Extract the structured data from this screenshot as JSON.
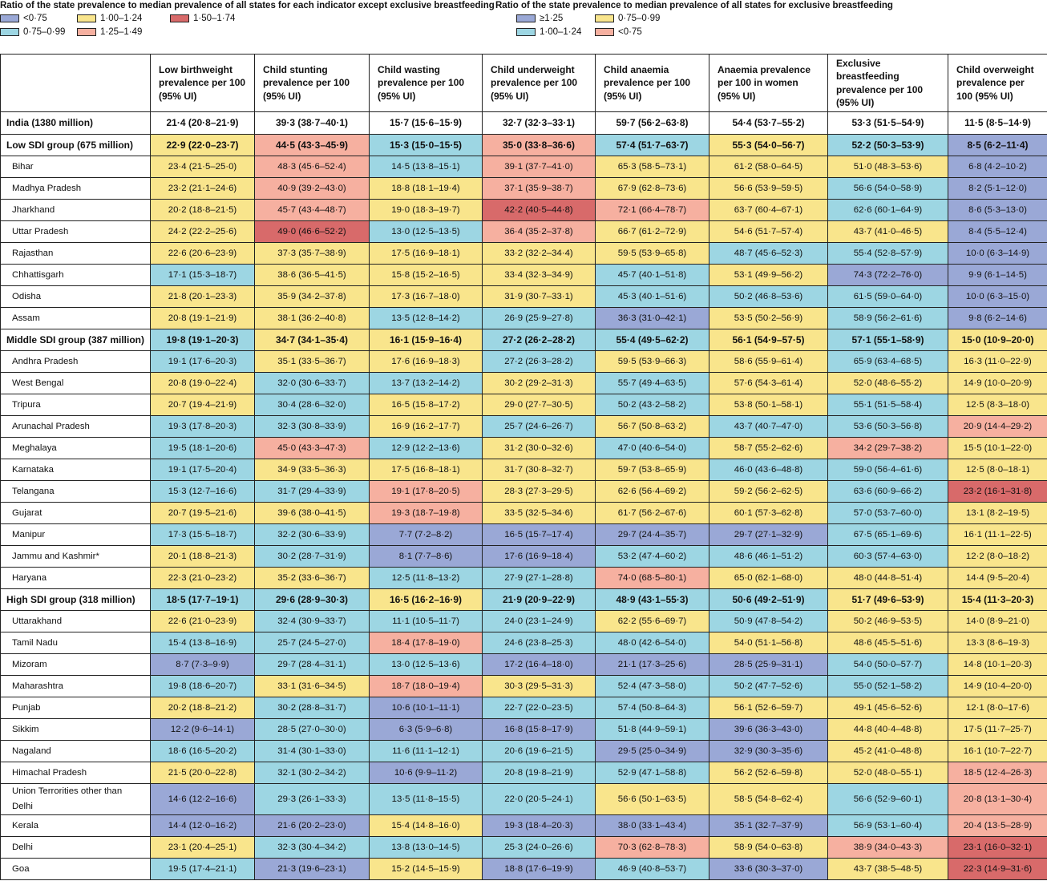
{
  "legend": {
    "left": {
      "title": "Ratio of the state prevalence to median prevalence of all states for each indicator except exclusive breastfeeding",
      "items": [
        {
          "label": "<0·75",
          "color": "#9aa8d6"
        },
        {
          "label": "1·00–1·24",
          "color": "#f9e58c"
        },
        {
          "label": "1·50–1·74",
          "color": "#d86a6a"
        },
        {
          "label": "0·75–0·99",
          "color": "#9dd6e3"
        },
        {
          "label": "1·25–1·49",
          "color": "#f6b0a0"
        }
      ]
    },
    "right": {
      "title": "Ratio of the state prevalence to median prevalence of all states for exclusive breastfeeding",
      "items": [
        {
          "label": "≥1·25",
          "color": "#9aa8d6"
        },
        {
          "label": "0·75–0·99",
          "color": "#f9e58c"
        },
        {
          "label": "1·00–1·24",
          "color": "#9dd6e3"
        },
        {
          "label": "<0·75",
          "color": "#f6b0a0"
        }
      ]
    }
  },
  "colors": {
    "B": "#9aa8d6",
    "C": "#9dd6e3",
    "Y": "#f9e58c",
    "P": "#f6b0a0",
    "R": "#d86a6a",
    "W": "#ffffff"
  },
  "headers": [
    "",
    "Low birthweight prevalence per 100 (95% UI)",
    "Child  stunting prevalence per 100 (95% UI)",
    "Child wasting prevalence per 100 (95% UI)",
    "Child underweight prevalence per 100 (95% UI)",
    "Child anaemia prevalence per 100 (95% UI)",
    "Anaemia  prevalence per 100 in women (95% UI)",
    "Exclusive breastfeeding prevalence per 100 (95% UI)",
    "Child overweight prevalence per 100 (95% UI)"
  ],
  "rows": [
    {
      "label": "India (1380 million)",
      "type": "nat",
      "cells": [
        "21·4 (20·8–21·9)",
        "39·3 (38·7–40·1)",
        "15·7 (15·6–15·9)",
        "32·7 (32·3–33·1)",
        "59·7 (56·2–63·8)",
        "54·4 (53·7–55·2)",
        "53·3 (51·5–54·9)",
        "11·5 (8·5–14·9)"
      ],
      "colors": [
        "W",
        "W",
        "W",
        "W",
        "W",
        "W",
        "W",
        "W"
      ]
    },
    {
      "label": "Low SDI group (675 million)",
      "type": "grp",
      "cells": [
        "22·9 (22·0–23·7)",
        "44·5 (43·3–45·9)",
        "15·3 (15·0–15·5)",
        "35·0 (33·8–36·6)",
        "57·4 (51·7–63·7)",
        "55·3 (54·0–56·7)",
        "52·2 (50·3–53·9)",
        "8·5 (6·2–11·4)"
      ],
      "colors": [
        "Y",
        "P",
        "C",
        "P",
        "C",
        "Y",
        "C",
        "B"
      ]
    },
    {
      "label": "Bihar",
      "type": "row",
      "cells": [
        "23·4 (21·5–25·0)",
        "48·3 (45·6–52·4)",
        "14·5 (13·8–15·1)",
        "39·1 (37·7–41·0)",
        "65·3 (58·5–73·1)",
        "61·2 (58·0–64·5)",
        "51·0 (48·3–53·6)",
        "6·8 (4·2–10·2)"
      ],
      "colors": [
        "Y",
        "P",
        "C",
        "P",
        "Y",
        "Y",
        "Y",
        "B"
      ]
    },
    {
      "label": "Madhya Pradesh",
      "type": "row",
      "cells": [
        "23·2 (21·1–24·6)",
        "40·9 (39·2–43·0)",
        "18·8 (18·1–19·4)",
        "37·1 (35·9–38·7)",
        "67·9 (62·8–73·6)",
        "56·6 (53·9–59·5)",
        "56·6 (54·0–58·9)",
        "8·2 (5·1–12·0)"
      ],
      "colors": [
        "Y",
        "P",
        "Y",
        "P",
        "Y",
        "Y",
        "C",
        "B"
      ]
    },
    {
      "label": "Jharkhand",
      "type": "row",
      "cells": [
        "20·2 (18·8–21·5)",
        "45·7 (43·4–48·7)",
        "19·0 (18·3–19·7)",
        "42·2 (40·5–44·8)",
        "72·1 (66·4–78·7)",
        "63·7 (60·4–67·1)",
        "62·6 (60·1–64·9)",
        "8·6 (5·3–13·0)"
      ],
      "colors": [
        "Y",
        "P",
        "Y",
        "R",
        "P",
        "Y",
        "C",
        "B"
      ]
    },
    {
      "label": "Uttar Pradesh",
      "type": "row",
      "cells": [
        "24·2 (22·2–25·6)",
        "49·0 (46·6–52·2)",
        "13·0 (12·5–13·5)",
        "36·4 (35·2–37·8)",
        "66·7 (61·2–72·9)",
        "54·6 (51·7–57·4)",
        "43·7 (41·0–46·5)",
        "8·4 (5·5–12·4)"
      ],
      "colors": [
        "Y",
        "R",
        "C",
        "P",
        "Y",
        "Y",
        "Y",
        "B"
      ]
    },
    {
      "label": "Rajasthan",
      "type": "row",
      "cells": [
        "22·6 (20·6–23·9)",
        "37·3 (35·7–38·9)",
        "17·5 (16·9–18·1)",
        "33·2 (32·2–34·4)",
        "59·5 (53·9–65·8)",
        "48·7 (45·6–52·3)",
        "55·4 (52·8–57·9)",
        "10·0 (6·3–14·9)"
      ],
      "colors": [
        "Y",
        "Y",
        "Y",
        "Y",
        "Y",
        "C",
        "C",
        "B"
      ]
    },
    {
      "label": "Chhattisgarh",
      "type": "row",
      "cells": [
        "17·1 (15·3–18·7)",
        "38·6 (36·5–41·5)",
        "15·8 (15·2–16·5)",
        "33·4 (32·3–34·9)",
        "45·7 (40·1–51·8)",
        "53·1 (49·9–56·2)",
        "74·3 (72·2–76·0)",
        "9·9 (6·1–14·5)"
      ],
      "colors": [
        "C",
        "Y",
        "Y",
        "Y",
        "C",
        "Y",
        "B",
        "B"
      ]
    },
    {
      "label": "Odisha",
      "type": "row",
      "cells": [
        "21·8 (20·1–23·3)",
        "35·9 (34·2–37·8)",
        "17·3 (16·7–18·0)",
        "31·9 (30·7–33·1)",
        "45·3 (40·1–51·6)",
        "50·2 (46·8–53·6)",
        "61·5 (59·0–64·0)",
        "10·0 (6·3–15·0)"
      ],
      "colors": [
        "Y",
        "Y",
        "Y",
        "Y",
        "C",
        "C",
        "C",
        "B"
      ]
    },
    {
      "label": "Assam",
      "type": "row",
      "cells": [
        "20·8 (19·1–21·9)",
        "38·1 (36·2–40·8)",
        "13·5 (12·8–14·2)",
        "26·9 (25·9–27·8)",
        "36·3 (31·0–42·1)",
        "53·5 (50·2–56·9)",
        "58·9 (56·2–61·6)",
        "9·8 (6·2–14·6)"
      ],
      "colors": [
        "Y",
        "Y",
        "C",
        "C",
        "B",
        "Y",
        "C",
        "B"
      ]
    },
    {
      "label": "Middle SDI group (387 million)",
      "type": "grp",
      "cells": [
        "19·8 (19·1–20·3)",
        "34·7 (34·1–35·4)",
        "16·1 (15·9–16·4)",
        "27·2 (26·2–28·2)",
        "55·4 (49·5–62·2)",
        "56·1 (54·9–57·5)",
        "57·1 (55·1–58·9)",
        "15·0 (10·9–20·0)"
      ],
      "colors": [
        "C",
        "Y",
        "Y",
        "C",
        "C",
        "Y",
        "C",
        "Y"
      ]
    },
    {
      "label": "Andhra Pradesh",
      "type": "row",
      "cells": [
        "19·1 (17·6–20·3)",
        "35·1 (33·5–36·7)",
        "17·6 (16·9–18·3)",
        "27·2 (26·3–28·2)",
        "59·5 (53·9–66·3)",
        "58·6 (55·9–61·4)",
        "65·9 (63·4–68·5)",
        "16·3 (11·0–22·9)"
      ],
      "colors": [
        "C",
        "Y",
        "Y",
        "C",
        "Y",
        "Y",
        "C",
        "Y"
      ]
    },
    {
      "label": "West Bengal",
      "type": "row",
      "cells": [
        "20·8 (19·0–22·4)",
        "32·0 (30·6–33·7)",
        "13·7 (13·2–14·2)",
        "30·2 (29·2–31·3)",
        "55·7 (49·4–63·5)",
        "57·6 (54·3–61·4)",
        "52·0 (48·6–55·2)",
        "14·9 (10·0–20·9)"
      ],
      "colors": [
        "Y",
        "C",
        "C",
        "Y",
        "C",
        "Y",
        "Y",
        "Y"
      ]
    },
    {
      "label": "Tripura",
      "type": "row",
      "cells": [
        "20·7 (19·4–21·9)",
        "30·4 (28·6–32·0)",
        "16·5 (15·8–17·2)",
        "29·0 (27·7–30·5)",
        "50·2 (43·2–58·2)",
        "53·8 (50·1–58·1)",
        "55·1 (51·5–58·4)",
        "12·5 (8·3–18·0)"
      ],
      "colors": [
        "Y",
        "C",
        "Y",
        "Y",
        "C",
        "Y",
        "C",
        "Y"
      ]
    },
    {
      "label": "Arunachal Pradesh",
      "type": "row",
      "cells": [
        "19·3 (17·8–20·3)",
        "32·3 (30·8–33·9)",
        "16·9 (16·2–17·7)",
        "25·7 (24·6–26·7)",
        "56·7 (50·8–63·2)",
        "43·7 (40·7–47·0)",
        "53·6 (50·3–56·8)",
        "20·9 (14·4–29·2)"
      ],
      "colors": [
        "C",
        "C",
        "Y",
        "C",
        "Y",
        "C",
        "C",
        "P"
      ]
    },
    {
      "label": "Meghalaya",
      "type": "row",
      "cells": [
        "19·5 (18·1–20·6)",
        "45·0 (43·3–47·3)",
        "12·9 (12·2–13·6)",
        "31·2 (30·0–32·6)",
        "47·0 (40·6–54·0)",
        "58·7 (55·2–62·6)",
        "34·2 (29·7–38·2)",
        "15·5 (10·1–22·0)"
      ],
      "colors": [
        "C",
        "P",
        "C",
        "Y",
        "C",
        "Y",
        "P",
        "Y"
      ]
    },
    {
      "label": "Karnataka",
      "type": "row",
      "cells": [
        "19·1 (17·5–20·4)",
        "34·9 (33·5–36·3)",
        "17·5 (16·8–18·1)",
        "31·7 (30·8–32·7)",
        "59·7 (53·8–65·9)",
        "46·0 (43·6–48·8)",
        "59·0 (56·4–61·6)",
        "12·5 (8·0–18·1)"
      ],
      "colors": [
        "C",
        "Y",
        "Y",
        "Y",
        "Y",
        "C",
        "C",
        "Y"
      ]
    },
    {
      "label": "Telangana",
      "type": "row",
      "cells": [
        "15·3 (12·7–16·6)",
        "31·7 (29·4–33·9)",
        "19·1 (17·8–20·5)",
        "28·3 (27·3–29·5)",
        "62·6 (56·4–69·2)",
        "59·2 (56·2–62·5)",
        "63·6 (60·9–66·2)",
        "23·2 (16·1–31·8)"
      ],
      "colors": [
        "C",
        "C",
        "P",
        "Y",
        "Y",
        "Y",
        "C",
        "R"
      ]
    },
    {
      "label": "Gujarat",
      "type": "row",
      "cells": [
        "20·7 (19·5–21·6)",
        "39·6 (38·0–41·5)",
        "19·3 (18·7–19·8)",
        "33·5 (32·5–34·6)",
        "61·7 (56·2–67·6)",
        "60·1 (57·3–62·8)",
        "57·0 (53·7–60·0)",
        "13·1 (8·2–19·5)"
      ],
      "colors": [
        "Y",
        "Y",
        "P",
        "Y",
        "Y",
        "Y",
        "C",
        "Y"
      ]
    },
    {
      "label": "Manipur",
      "type": "row",
      "cells": [
        "17·3 (15·5–18·7)",
        "32·2 (30·6–33·9)",
        "7·7 (7·2–8·2)",
        "16·5 (15·7–17·4)",
        "29·7 (24·4–35·7)",
        "29·7 (27·1–32·9)",
        "67·5 (65·1–69·6)",
        "16·1 (11·1–22·5)"
      ],
      "colors": [
        "C",
        "C",
        "B",
        "B",
        "B",
        "B",
        "C",
        "Y"
      ]
    },
    {
      "label": "Jammu and Kashmir*",
      "type": "row",
      "cells": [
        "20·1 (18·8–21·3)",
        "30·2 (28·7–31·9)",
        "8·1 (7·7–8·6)",
        "17·6 (16·9–18·4)",
        "53·2 (47·4–60·2)",
        "48·6 (46·1–51·2)",
        "60·3 (57·4–63·0)",
        "12·2 (8·0–18·2)"
      ],
      "colors": [
        "Y",
        "C",
        "B",
        "B",
        "C",
        "C",
        "C",
        "Y"
      ]
    },
    {
      "label": "Haryana",
      "type": "row",
      "cells": [
        "22·3 (21·0–23·2)",
        "35·2 (33·6–36·7)",
        "12·5 (11·8–13·2)",
        "27·9 (27·1–28·8)",
        "74·0 (68·5–80·1)",
        "65·0 (62·1–68·0)",
        "48·0 (44·8–51·4)",
        "14·4 (9·5–20·4)"
      ],
      "colors": [
        "Y",
        "Y",
        "C",
        "C",
        "P",
        "Y",
        "Y",
        "Y"
      ]
    },
    {
      "label": "High SDI group (318 million)",
      "type": "grp",
      "cells": [
        "18·5 (17·7–19·1)",
        "29·6 (28·9–30·3)",
        "16·5 (16·2–16·9)",
        "21·9 (20·9–22·9)",
        "48·9 (43·1–55·3)",
        "50·6 (49·2–51·9)",
        "51·7 (49·6–53·9)",
        "15·4 (11·3–20·3)"
      ],
      "colors": [
        "C",
        "C",
        "Y",
        "C",
        "C",
        "C",
        "Y",
        "Y"
      ]
    },
    {
      "label": "Uttarakhand",
      "type": "row",
      "cells": [
        "22·6 (21·0–23·9)",
        "32·4 (30·9–33·7)",
        "11·1 (10·5–11·7)",
        "24·0 (23·1–24·9)",
        "62·2 (55·6–69·7)",
        "50·9 (47·8–54·2)",
        "50·2 (46·9–53·5)",
        "14·0 (8·9–21·0)"
      ],
      "colors": [
        "Y",
        "C",
        "C",
        "C",
        "Y",
        "C",
        "Y",
        "Y"
      ]
    },
    {
      "label": "Tamil Nadu",
      "type": "row",
      "cells": [
        "15·4 (13·8–16·9)",
        "25·7 (24·5–27·0)",
        "18·4 (17·8–19·0)",
        "24·6 (23·8–25·3)",
        "48·0 (42·6–54·0)",
        "54·0 (51·1–56·8)",
        "48·6 (45·5–51·6)",
        "13·3 (8·6–19·3)"
      ],
      "colors": [
        "C",
        "C",
        "P",
        "C",
        "C",
        "Y",
        "Y",
        "Y"
      ]
    },
    {
      "label": "Mizoram",
      "type": "row",
      "cells": [
        "8·7 (7·3–9·9)",
        "29·7 (28·4–31·1)",
        "13·0 (12·5–13·6)",
        "17·2 (16·4–18·0)",
        "21·1 (17·3–25·6)",
        "28·5 (25·9–31·1)",
        "54·0 (50·0–57·7)",
        "14·8 (10·1–20·3)"
      ],
      "colors": [
        "B",
        "C",
        "C",
        "B",
        "B",
        "B",
        "C",
        "Y"
      ]
    },
    {
      "label": "Maharashtra",
      "type": "row",
      "cells": [
        "19·8 (18·6–20·7)",
        "33·1 (31·6–34·5)",
        "18·7 (18·0–19·4)",
        "30·3 (29·5–31·3)",
        "52·4 (47·3–58·0)",
        "50·2 (47·7–52·6)",
        "55·0 (52·1–58·2)",
        "14·9 (10·4–20·0)"
      ],
      "colors": [
        "C",
        "Y",
        "P",
        "Y",
        "C",
        "C",
        "C",
        "Y"
      ]
    },
    {
      "label": "Punjab",
      "type": "row",
      "cells": [
        "20·2 (18·8–21·2)",
        "30·2 (28·8–31·7)",
        "10·6 (10·1–11·1)",
        "22·7 (22·0–23·5)",
        "57·4 (50·8–64·3)",
        "56·1 (52·6–59·7)",
        "49·1 (45·6–52·6)",
        "12·1 (8·0–17·6)"
      ],
      "colors": [
        "Y",
        "C",
        "B",
        "C",
        "C",
        "Y",
        "Y",
        "Y"
      ]
    },
    {
      "label": "Sikkim",
      "type": "row",
      "cells": [
        "12·2 (9·6–14·1)",
        "28·5 (27·0–30·0)",
        "6·3 (5·9–6·8)",
        "16·8 (15·8–17·9)",
        "51·8 (44·9–59·1)",
        "39·6 (36·3–43·0)",
        "44·8 (40·4–48·8)",
        "17·5 (11·7–25·7)"
      ],
      "colors": [
        "B",
        "C",
        "B",
        "B",
        "C",
        "B",
        "Y",
        "Y"
      ]
    },
    {
      "label": "Nagaland",
      "type": "row",
      "cells": [
        "18·6 (16·5–20·2)",
        "31·4 (30·1–33·0)",
        "11·6 (11·1–12·1)",
        "20·6 (19·6–21·5)",
        "29·5 (25·0–34·9)",
        "32·9 (30·3–35·6)",
        "45·2 (41·0–48·8)",
        "16·1 (10·7–22·7)"
      ],
      "colors": [
        "C",
        "C",
        "C",
        "C",
        "B",
        "B",
        "Y",
        "Y"
      ]
    },
    {
      "label": "Himachal Pradesh",
      "type": "row",
      "cells": [
        "21·5 (20·0–22·8)",
        "32·1 (30·2–34·2)",
        "10·6 (9·9–11·2)",
        "20·8 (19·8–21·9)",
        "52·9 (47·1–58·8)",
        "56·2 (52·6–59·8)",
        "52·0 (48·0–55·1)",
        "18·5 (12·4–26·3)"
      ],
      "colors": [
        "Y",
        "C",
        "B",
        "C",
        "C",
        "Y",
        "Y",
        "P"
      ]
    },
    {
      "label": "Union Terrorities other than Delhi",
      "type": "tall",
      "cells": [
        "14·6 (12·2–16·6)",
        "29·3 (26·1–33·3)",
        "13·5 (11·8–15·5)",
        "22·0 (20·5–24·1)",
        "56·6 (50·1–63·5)",
        "58·5 (54·8–62·4)",
        "56·6 (52·9–60·1)",
        "20·8 (13·1–30·4)"
      ],
      "colors": [
        "B",
        "C",
        "C",
        "C",
        "Y",
        "Y",
        "C",
        "P"
      ]
    },
    {
      "label": "Kerala",
      "type": "row",
      "cells": [
        "14·4 (12·0–16·2)",
        "21·6 (20·2–23·0)",
        "15·4 (14·8–16·0)",
        "19·3 (18·4–20·3)",
        "38·0 (33·1–43·4)",
        "35·1 (32·7–37·9)",
        "56·9 (53·1–60·4)",
        "20·4 (13·5–28·9)"
      ],
      "colors": [
        "B",
        "B",
        "Y",
        "B",
        "B",
        "B",
        "C",
        "P"
      ]
    },
    {
      "label": "Delhi",
      "type": "row",
      "cells": [
        "23·1 (20·4–25·1)",
        "32·3 (30·4–34·2)",
        "13·8 (13·0–14·5)",
        "25·3 (24·0–26·6)",
        "70·3 (62·8–78·3)",
        "58·9 (54·0–63·8)",
        "38·9 (34·0–43·3)",
        "23·1 (16·0–32·1)"
      ],
      "colors": [
        "Y",
        "C",
        "C",
        "C",
        "P",
        "Y",
        "P",
        "R"
      ]
    },
    {
      "label": "Goa",
      "type": "row",
      "cells": [
        "19·5 (17·4–21·1)",
        "21·3 (19·6–23·1)",
        "15·2 (14·5–15·9)",
        "18·8 (17·6–19·9)",
        "46·9 (40·8–53·7)",
        "33·6 (30·3–37·0)",
        "43·7 (38·5–48·5)",
        "22·3 (14·9–31·6)"
      ],
      "colors": [
        "C",
        "B",
        "Y",
        "B",
        "C",
        "B",
        "Y",
        "R"
      ]
    }
  ]
}
